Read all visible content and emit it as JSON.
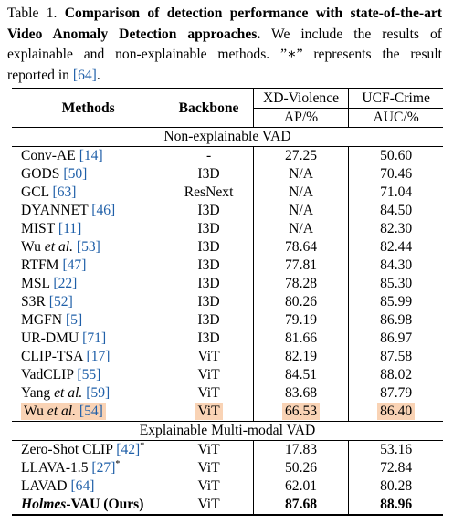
{
  "caption": {
    "label": "Table 1.",
    "title": "Comparison of detection performance with state-of-the-art Video Anomaly Detection approaches.",
    "body_1": "We include the results of explainable and non-explainable methods.",
    "quote": "”∗” represents the result reported in",
    "ref": "[64]",
    "end": "."
  },
  "table": {
    "headers": {
      "methods": "Methods",
      "backbone": "Backbone",
      "xd": "XD-Violence",
      "ucf": "UCF-Crime",
      "xd_metric": "AP/%",
      "ucf_metric": "AUC/%"
    },
    "sections": [
      {
        "title": "Non-explainable VAD",
        "rows": [
          {
            "name": "Conv-AE",
            "ref": "[14]",
            "backbone": "-",
            "xd": "27.25",
            "ucf": "50.60"
          },
          {
            "name": "GODS",
            "ref": "[50]",
            "backbone": "I3D",
            "xd": "N/A",
            "ucf": "70.46"
          },
          {
            "name": "GCL",
            "ref": "[63]",
            "backbone": "ResNext",
            "xd": "N/A",
            "ucf": "71.04"
          },
          {
            "name": "DYANNET",
            "ref": "[46]",
            "backbone": "I3D",
            "xd": "N/A",
            "ucf": "84.50"
          },
          {
            "name": "MIST",
            "ref": "[11]",
            "backbone": "I3D",
            "xd": "N/A",
            "ucf": "82.30"
          },
          {
            "name": "Wu ",
            "ital": "et al.",
            "ref": "[53]",
            "backbone": "I3D",
            "xd": "78.64",
            "ucf": "82.44"
          },
          {
            "name": "RTFM",
            "ref": "[47]",
            "backbone": "I3D",
            "xd": "77.81",
            "ucf": "84.30"
          },
          {
            "name": "MSL",
            "ref": "[22]",
            "backbone": "I3D",
            "xd": "78.28",
            "ucf": "85.30"
          },
          {
            "name": "S3R",
            "ref": "[52]",
            "backbone": "I3D",
            "xd": "80.26",
            "ucf": "85.99"
          },
          {
            "name": "MGFN",
            "ref": "[5]",
            "backbone": "I3D",
            "xd": "79.19",
            "ucf": "86.98"
          },
          {
            "name": "UR-DMU",
            "ref": "[71]",
            "backbone": "I3D",
            "xd": "81.66",
            "ucf": "86.97"
          },
          {
            "name": "CLIP-TSA",
            "ref": "[17]",
            "backbone": "ViT",
            "xd": "82.19",
            "ucf": "87.58"
          },
          {
            "name": "VadCLIP",
            "ref": "[55]",
            "backbone": "ViT",
            "xd": "84.51",
            "ucf": "88.02"
          },
          {
            "name": "Yang ",
            "ital": "et al.",
            "ref": "[59]",
            "backbone": "ViT",
            "xd": "83.68",
            "ucf": "87.79"
          },
          {
            "name": "Wu ",
            "ital": "et al.",
            "ref": "[54]",
            "backbone": "ViT",
            "xd": "66.53",
            "ucf": "86.40",
            "highlight": true
          }
        ]
      },
      {
        "title": "Explainable Multi-modal VAD",
        "rows": [
          {
            "name": "Zero-Shot CLIP",
            "ref": "[42]",
            "star": "*",
            "backbone": "ViT",
            "xd": "17.83",
            "ucf": "53.16"
          },
          {
            "name": "LLAVA-1.5",
            "ref": "[27]",
            "star": "*",
            "backbone": "ViT",
            "xd": "50.26",
            "ucf": "72.84"
          },
          {
            "name": "LAVAD",
            "ref": "[64]",
            "backbone": "ViT",
            "xd": "62.01",
            "ucf": "80.28"
          },
          {
            "name_ital": "Holmes",
            "name": "-VAU (Ours)",
            "backbone": "ViT",
            "xd": "87.68",
            "ucf": "88.96",
            "ours": true
          }
        ]
      }
    ]
  },
  "colors": {
    "ref": "#1f5fa8",
    "highlight": "#f9d3b5"
  }
}
